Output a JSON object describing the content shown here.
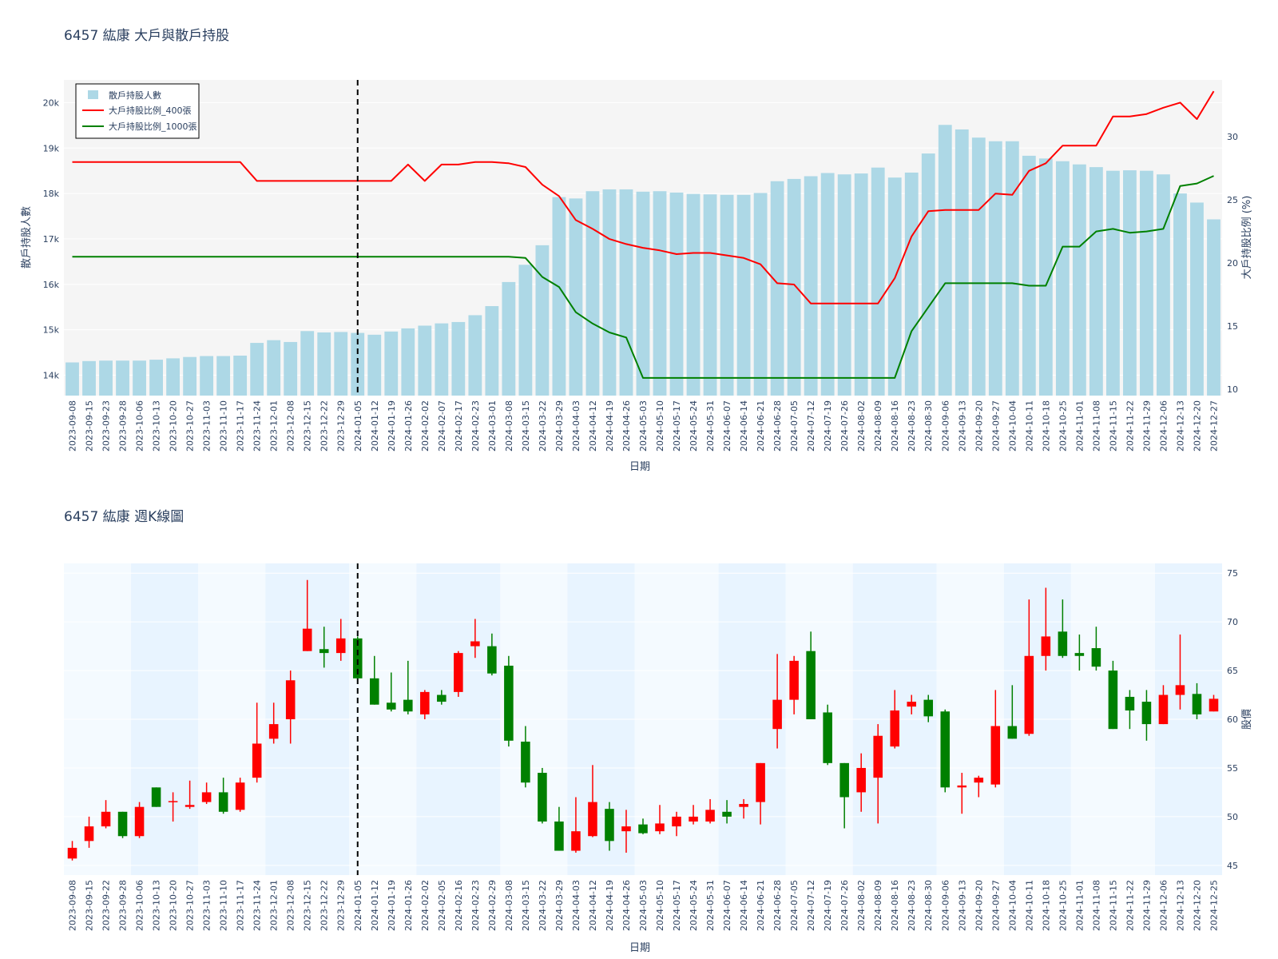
{
  "colors": {
    "bar": "#add8e6",
    "line400": "#ff0000",
    "line1000": "#008000",
    "up": "#ff0000",
    "down": "#008000",
    "band": "#e8f4ff",
    "plotbg": "#f5f5f5",
    "refline": "#000000"
  },
  "chart_data": [
    {
      "type": "bar+line",
      "title": "6457 紘康 大戶與散戶持股",
      "xlabel": "日期",
      "ylabel": "散戶持股人數",
      "y2label": "大戶持股比例 (%)",
      "ylim": [
        13550,
        20500
      ],
      "y2lim": [
        9.5,
        34.5
      ],
      "yticks": [
        {
          "v": 14000,
          "label": "14k"
        },
        {
          "v": 15000,
          "label": "15k"
        },
        {
          "v": 16000,
          "label": "16k"
        },
        {
          "v": 17000,
          "label": "17k"
        },
        {
          "v": 18000,
          "label": "18k"
        },
        {
          "v": 19000,
          "label": "19k"
        },
        {
          "v": 20000,
          "label": "20k"
        }
      ],
      "y2ticks": [
        10,
        15,
        20,
        25,
        30
      ],
      "legend_position": "top-left",
      "reference_date": "2024-01-05",
      "x": [
        "2023-09-08",
        "2023-09-15",
        "2023-09-23",
        "2023-09-28",
        "2023-10-06",
        "2023-10-13",
        "2023-10-20",
        "2023-10-27",
        "2023-11-03",
        "2023-11-10",
        "2023-11-17",
        "2023-11-24",
        "2023-12-01",
        "2023-12-08",
        "2023-12-15",
        "2023-12-22",
        "2023-12-29",
        "2024-01-05",
        "2024-01-12",
        "2024-01-19",
        "2024-01-26",
        "2024-02-02",
        "2024-02-07",
        "2024-02-17",
        "2024-02-23",
        "2024-03-01",
        "2024-03-08",
        "2024-03-15",
        "2024-03-22",
        "2024-03-29",
        "2024-04-03",
        "2024-04-12",
        "2024-04-19",
        "2024-04-26",
        "2024-05-03",
        "2024-05-10",
        "2024-05-17",
        "2024-05-24",
        "2024-05-31",
        "2024-06-07",
        "2024-06-14",
        "2024-06-21",
        "2024-06-28",
        "2024-07-05",
        "2024-07-12",
        "2024-07-19",
        "2024-07-26",
        "2024-08-02",
        "2024-08-09",
        "2024-08-16",
        "2024-08-23",
        "2024-08-30",
        "2024-09-06",
        "2024-09-13",
        "2024-09-20",
        "2024-09-27",
        "2024-10-04",
        "2024-10-11",
        "2024-10-18",
        "2024-10-25",
        "2024-11-01",
        "2024-11-08",
        "2024-11-15",
        "2024-11-22",
        "2024-11-29",
        "2024-12-06",
        "2024-12-13",
        "2024-12-20",
        "2024-12-27"
      ],
      "series": [
        {
          "name": "散戶持股人數",
          "type": "bar",
          "axis": "y",
          "values": [
            14280,
            14310,
            14320,
            14320,
            14320,
            14340,
            14370,
            14400,
            14420,
            14420,
            14430,
            14710,
            14770,
            14730,
            14970,
            14940,
            14950,
            14930,
            14890,
            14960,
            15030,
            15090,
            15140,
            15170,
            15320,
            15520,
            16050,
            16430,
            16860,
            17920,
            17890,
            18050,
            18090,
            18090,
            18040,
            18050,
            18020,
            17990,
            17980,
            17970,
            17970,
            18010,
            18270,
            18320,
            18380,
            18450,
            18420,
            18440,
            18570,
            18350,
            18460,
            18880,
            19510,
            19410,
            19230,
            19150,
            19150,
            18830,
            18770,
            18710,
            18640,
            18580,
            18500,
            18510,
            18500,
            18420,
            18000,
            17800,
            17430
          ]
        },
        {
          "name": "大戶持股比例_400張",
          "type": "line",
          "axis": "y2",
          "values": [
            28.0,
            28.0,
            28.0,
            28.0,
            28.0,
            28.0,
            28.0,
            28.0,
            28.0,
            28.0,
            28.0,
            26.5,
            26.5,
            26.5,
            26.5,
            26.5,
            26.5,
            26.5,
            26.5,
            26.5,
            27.8,
            26.5,
            27.8,
            27.8,
            28.0,
            28.0,
            27.9,
            27.6,
            26.2,
            25.3,
            23.4,
            22.7,
            21.9,
            21.5,
            21.2,
            21.0,
            20.7,
            20.8,
            20.8,
            20.6,
            20.4,
            19.9,
            18.4,
            18.3,
            16.8,
            16.8,
            16.8,
            16.8,
            16.8,
            18.8,
            22.1,
            24.1,
            24.2,
            24.2,
            24.2,
            25.5,
            25.4,
            27.3,
            27.9,
            29.3,
            29.3,
            29.3,
            31.6,
            31.6,
            31.8,
            32.3,
            32.7,
            31.4,
            33.6
          ]
        },
        {
          "name": "大戶持股比例_1000張",
          "type": "line",
          "axis": "y2",
          "values": [
            20.5,
            20.5,
            20.5,
            20.5,
            20.5,
            20.5,
            20.5,
            20.5,
            20.5,
            20.5,
            20.5,
            20.5,
            20.5,
            20.5,
            20.5,
            20.5,
            20.5,
            20.5,
            20.5,
            20.5,
            20.5,
            20.5,
            20.5,
            20.5,
            20.5,
            20.5,
            20.5,
            20.4,
            18.9,
            18.1,
            16.1,
            15.2,
            14.5,
            14.1,
            10.9,
            10.9,
            10.9,
            10.9,
            10.9,
            10.9,
            10.9,
            10.9,
            10.9,
            10.9,
            10.9,
            10.9,
            10.9,
            10.9,
            10.9,
            10.9,
            14.6,
            16.5,
            18.4,
            18.4,
            18.4,
            18.4,
            18.4,
            18.2,
            18.2,
            21.3,
            21.3,
            22.5,
            22.7,
            22.4,
            22.5,
            22.7,
            26.1,
            26.3,
            26.9
          ]
        }
      ]
    },
    {
      "type": "candlestick",
      "title": "6457 紘康 週K線圖",
      "xlabel": "日期",
      "ylabel": "股價",
      "ylim": [
        44,
        76
      ],
      "yticks": [
        45,
        50,
        55,
        60,
        65,
        70,
        75
      ],
      "reference_date": "2024-01-05",
      "x": [
        "2023-09-08",
        "2023-09-15",
        "2023-09-22",
        "2023-09-28",
        "2023-10-06",
        "2023-10-13",
        "2023-10-20",
        "2023-10-27",
        "2023-11-03",
        "2023-11-10",
        "2023-11-17",
        "2023-11-24",
        "2023-12-01",
        "2023-12-08",
        "2023-12-15",
        "2023-12-22",
        "2023-12-29",
        "2024-01-05",
        "2024-01-12",
        "2024-01-19",
        "2024-01-26",
        "2024-02-02",
        "2024-02-05",
        "2024-02-16",
        "2024-02-23",
        "2024-02-29",
        "2024-03-08",
        "2024-03-15",
        "2024-03-22",
        "2024-03-29",
        "2024-04-03",
        "2024-04-12",
        "2024-04-19",
        "2024-04-26",
        "2024-05-03",
        "2024-05-10",
        "2024-05-17",
        "2024-05-24",
        "2024-05-31",
        "2024-06-07",
        "2024-06-14",
        "2024-06-21",
        "2024-06-28",
        "2024-07-05",
        "2024-07-12",
        "2024-07-19",
        "2024-07-26",
        "2024-08-02",
        "2024-08-09",
        "2024-08-16",
        "2024-08-23",
        "2024-08-30",
        "2024-09-06",
        "2024-09-13",
        "2024-09-20",
        "2024-09-27",
        "2024-10-04",
        "2024-10-11",
        "2024-10-18",
        "2024-10-25",
        "2024-11-01",
        "2024-11-08",
        "2024-11-15",
        "2024-11-22",
        "2024-11-29",
        "2024-12-06",
        "2024-12-13",
        "2024-12-20",
        "2024-12-25"
      ],
      "open": [
        45.7,
        47.5,
        49.0,
        50.5,
        48.0,
        53.0,
        51.6,
        51.0,
        51.5,
        52.5,
        50.7,
        54.0,
        58.0,
        60.0,
        67.0,
        67.2,
        66.8,
        68.3,
        64.2,
        61.7,
        62.0,
        60.5,
        62.5,
        62.8,
        67.5,
        67.5,
        65.5,
        57.7,
        54.5,
        49.5,
        46.5,
        48.0,
        50.8,
        48.5,
        49.2,
        48.5,
        49.0,
        49.5,
        49.5,
        50.5,
        51.0,
        51.5,
        59.0,
        62.0,
        67.0,
        60.7,
        55.5,
        52.5,
        54.0,
        57.2,
        61.3,
        62.0,
        60.8,
        53.0,
        53.5,
        53.3,
        59.3,
        58.5,
        66.5,
        69.0,
        66.8,
        67.3,
        65.0,
        62.3,
        61.8,
        59.5,
        62.5,
        62.6,
        60.8
      ],
      "close": [
        46.8,
        49.0,
        50.5,
        48.0,
        51.0,
        51.0,
        51.6,
        51.2,
        52.5,
        50.5,
        53.5,
        57.5,
        59.5,
        64.0,
        69.3,
        66.8,
        68.3,
        64.2,
        61.5,
        61.0,
        60.8,
        62.8,
        61.8,
        66.8,
        68.0,
        64.7,
        57.8,
        53.5,
        49.5,
        46.5,
        48.5,
        51.5,
        47.5,
        49.0,
        48.3,
        49.3,
        50.0,
        50.0,
        50.7,
        50.0,
        51.3,
        55.5,
        62.0,
        66.0,
        60.0,
        55.5,
        52.0,
        55.0,
        58.3,
        60.9,
        61.8,
        60.3,
        53.0,
        53.2,
        54.0,
        59.3,
        58.0,
        66.5,
        68.5,
        66.5,
        66.5,
        65.4,
        59.0,
        60.9,
        59.5,
        62.5,
        63.5,
        60.5,
        62.1
      ],
      "high": [
        47.5,
        50.0,
        51.7,
        50.5,
        51.5,
        53.0,
        52.5,
        53.7,
        53.5,
        54.0,
        54.0,
        61.7,
        61.7,
        65.0,
        74.3,
        69.5,
        70.3,
        68.5,
        66.5,
        64.8,
        66.0,
        63.0,
        63.0,
        67.0,
        70.3,
        68.8,
        66.5,
        59.3,
        55.0,
        51.0,
        52.0,
        55.3,
        51.5,
        50.7,
        49.8,
        51.2,
        50.5,
        51.2,
        51.8,
        51.7,
        51.8,
        55.5,
        66.7,
        66.5,
        69.0,
        61.5,
        55.5,
        56.5,
        59.5,
        63.0,
        62.5,
        62.5,
        61.0,
        54.5,
        54.2,
        63.0,
        63.5,
        72.3,
        73.5,
        72.3,
        68.7,
        69.5,
        66.0,
        63.0,
        63.0,
        63.5,
        68.7,
        63.7,
        62.5
      ],
      "low": [
        45.5,
        46.8,
        48.8,
        47.8,
        47.8,
        51.0,
        49.5,
        50.8,
        51.3,
        50.3,
        50.5,
        53.5,
        57.5,
        57.5,
        67.0,
        65.3,
        66.0,
        64.0,
        61.5,
        60.8,
        60.5,
        60.0,
        61.5,
        62.3,
        66.3,
        64.5,
        57.2,
        53.0,
        49.3,
        46.5,
        46.3,
        47.9,
        46.5,
        46.3,
        48.2,
        48.2,
        48.0,
        49.2,
        49.3,
        49.3,
        49.8,
        49.2,
        57.0,
        60.5,
        60.0,
        55.3,
        48.8,
        50.5,
        49.3,
        57.0,
        60.5,
        59.7,
        52.5,
        50.3,
        52.0,
        53.0,
        58.0,
        58.3,
        65.0,
        66.3,
        65.0,
        65.0,
        59.0,
        59.0,
        57.8,
        59.5,
        61.0,
        60.0,
        60.8
      ]
    }
  ]
}
